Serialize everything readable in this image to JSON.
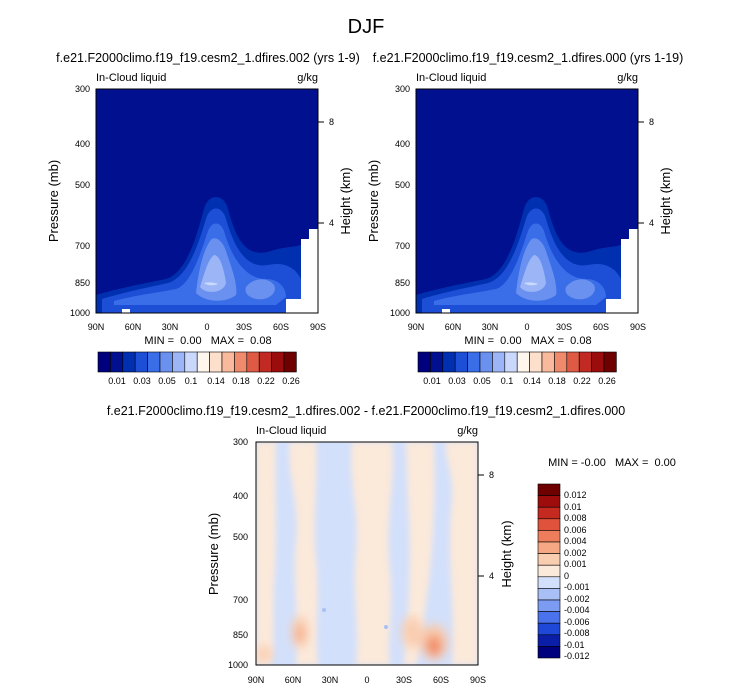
{
  "page_title": "DJF",
  "colors": {
    "panel_scale": [
      "#00007f",
      "#00108f",
      "#0030b0",
      "#1d4fd6",
      "#3a6ee8",
      "#6a90f0",
      "#9bb5f6",
      "#cad9fb",
      "#fff6ed",
      "#fde0cc",
      "#f8b99c",
      "#f08a6c",
      "#de5a45",
      "#c02a22",
      "#9b0c0c",
      "#6e0000"
    ],
    "diff_scale": [
      "#00007f",
      "#0b1ea8",
      "#1f48d9",
      "#4a72ec",
      "#7c9cf3",
      "#a9c0f7",
      "#d3e0fb",
      "#fbe9da",
      "#f9cdb0",
      "#f5a883",
      "#ee7d5c",
      "#e0523c",
      "#c42a1f",
      "#9e0d0c",
      "#6e0000"
    ]
  },
  "chart_data": [
    {
      "type": "heatmap",
      "title": "f.e21.F2000climo.f19_f19.cesm2_1.dfires.002 (yrs 1-9)",
      "left_label": "In-Cloud liquid",
      "right_label": "g/kg",
      "ylabel": "Pressure (mb)",
      "y2label": "Height (km)",
      "x_ticks": [
        "90N",
        "60N",
        "30N",
        "0",
        "30S",
        "60S",
        "90S"
      ],
      "y_ticks": [
        "300",
        "400",
        "500",
        "700",
        "850",
        "1000"
      ],
      "y2_ticks": [
        "8",
        "4"
      ],
      "stats": "MIN =  0.00   MAX =  0.08",
      "colorbar_labels": [
        "0.01",
        "0.03",
        "0.05",
        "0.1",
        "0.14",
        "0.18",
        "0.22",
        "0.26"
      ],
      "min": 0.0,
      "max": 0.08
    },
    {
      "type": "heatmap",
      "title": "f.e21.F2000climo.f19_f19.cesm2_1.dfires.000 (yrs 1-19)",
      "left_label": "In-Cloud liquid",
      "right_label": "g/kg",
      "ylabel": "Pressure (mb)",
      "y2label": "Height (km)",
      "x_ticks": [
        "90N",
        "60N",
        "30N",
        "0",
        "30S",
        "60S",
        "90S"
      ],
      "y_ticks": [
        "300",
        "400",
        "500",
        "700",
        "850",
        "1000"
      ],
      "y2_ticks": [
        "8",
        "4"
      ],
      "stats": "MIN =  0.00   MAX =  0.08",
      "colorbar_labels": [
        "0.01",
        "0.03",
        "0.05",
        "0.1",
        "0.14",
        "0.18",
        "0.22",
        "0.26"
      ],
      "min": 0.0,
      "max": 0.08
    },
    {
      "type": "heatmap",
      "title": "f.e21.F2000climo.f19_f19.cesm2_1.dfires.002 - f.e21.F2000climo.f19_f19.cesm2_1.dfires.000",
      "left_label": "In-Cloud liquid",
      "right_label": "g/kg",
      "ylabel": "Pressure (mb)",
      "y2label": "Height (km)",
      "x_ticks": [
        "90N",
        "60N",
        "30N",
        "0",
        "30S",
        "60S",
        "90S"
      ],
      "y_ticks": [
        "300",
        "400",
        "500",
        "700",
        "850",
        "1000"
      ],
      "y2_ticks": [
        "8",
        "4"
      ],
      "stats": "MIN = -0.00   MAX =  0.00",
      "colorbar_labels": [
        "0.012",
        "0.01",
        "0.008",
        "0.006",
        "0.004",
        "0.002",
        "0.001",
        "0",
        "-0.001",
        "-0.002",
        "-0.004",
        "-0.006",
        "-0.008",
        "-0.01",
        "-0.012"
      ],
      "min": -0.0,
      "max": 0.0
    }
  ]
}
